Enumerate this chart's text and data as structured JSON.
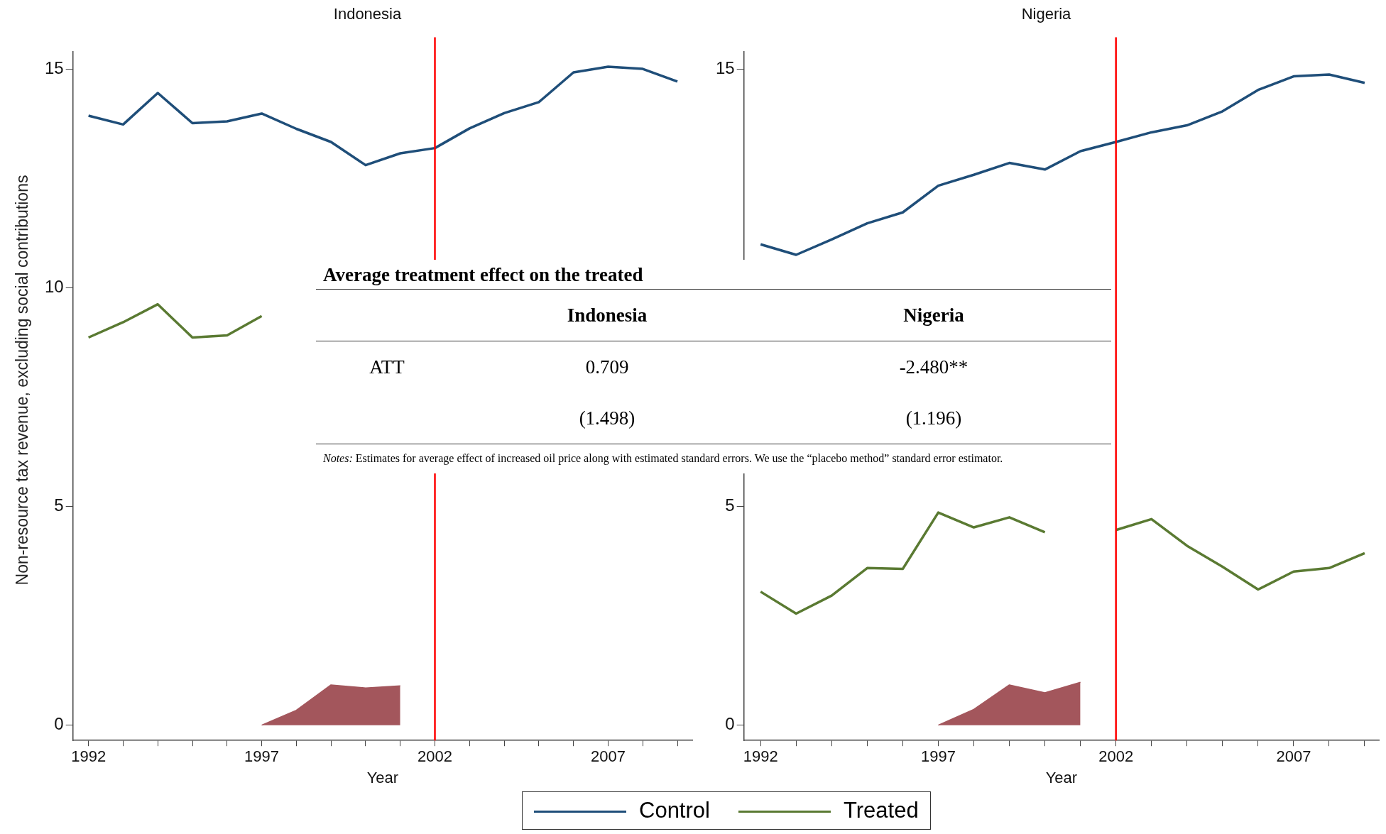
{
  "chart_data": [
    {
      "type": "line",
      "title": "Indonesia",
      "xlabel": "Year",
      "ylabel": "Non-resource tax revenue, excluding social contributions",
      "x": [
        1992,
        1993,
        1994,
        1995,
        1996,
        1997,
        1998,
        1999,
        2000,
        2001,
        2002,
        2003,
        2004,
        2005,
        2006,
        2007,
        2008,
        2009
      ],
      "series": [
        {
          "name": "Control",
          "color": "#1f4e79",
          "values": [
            13.93,
            13.73,
            14.45,
            13.76,
            13.8,
            13.98,
            13.63,
            13.33,
            12.8,
            13.07,
            13.19,
            13.64,
            13.99,
            14.24,
            14.92,
            15.05,
            15.0,
            14.71
          ]
        },
        {
          "name": "Treated",
          "color": "#5a7a32",
          "values": [
            8.86,
            9.21,
            9.62,
            8.86,
            8.91,
            9.35,
            null,
            null,
            null,
            null,
            null,
            null,
            null,
            null,
            null,
            null,
            null,
            null
          ]
        },
        {
          "type": "area",
          "color": "#a3565c",
          "values": [
            null,
            null,
            null,
            null,
            null,
            0,
            0.34,
            0.92,
            0.85,
            0.9,
            null,
            null,
            null,
            null,
            null,
            null,
            null,
            null
          ]
        }
      ],
      "xlim": [
        1991.55,
        2009.43
      ],
      "xticks": [
        1992,
        {
          "value": 1993,
          "label": null
        },
        {
          "value": 1994,
          "label": null
        },
        {
          "value": 1995,
          "label": null
        },
        {
          "value": 1996,
          "label": null
        },
        1997,
        {
          "value": 1998,
          "label": null
        },
        {
          "value": 1999,
          "label": null
        },
        {
          "value": 2000,
          "label": null
        },
        {
          "value": 2001,
          "label": null
        },
        2002,
        {
          "value": 2003,
          "label": null
        },
        {
          "value": 2004,
          "label": null
        },
        {
          "value": 2005,
          "label": null
        },
        {
          "value": 2006,
          "label": null
        },
        2007,
        {
          "value": 2008,
          "label": null
        },
        {
          "value": 2009,
          "label": null
        }
      ],
      "ylim": [
        -0.35,
        15.4
      ],
      "yticks": [
        0,
        5,
        10,
        15
      ],
      "ref_lines": [
        {
          "axis": "x",
          "value": 2002,
          "color": "#ff0000"
        }
      ],
      "marker": "none",
      "legend": "bottom"
    },
    {
      "type": "line",
      "title": "Nigeria",
      "xlabel": "Year",
      "x": [
        1992,
        1993,
        1994,
        1995,
        1996,
        1997,
        1998,
        1999,
        2000,
        2001,
        2002,
        2003,
        2004,
        2005,
        2006,
        2007,
        2008,
        2009
      ],
      "series": [
        {
          "color": "#1f4e79",
          "values": [
            10.99,
            10.75,
            11.1,
            11.47,
            11.72,
            12.33,
            12.58,
            12.85,
            12.7,
            13.12,
            13.33,
            13.55,
            13.71,
            14.03,
            14.52,
            14.83,
            14.87,
            14.68
          ]
        },
        {
          "color": "#5a7a32",
          "values": [
            3.05,
            2.55,
            2.96,
            3.59,
            3.57,
            4.86,
            4.52,
            4.75,
            4.41,
            null,
            4.46,
            4.71,
            4.1,
            3.62,
            3.1,
            3.51,
            3.59,
            3.93
          ]
        },
        {
          "type": "area",
          "color": "#a3565c",
          "values": [
            null,
            null,
            null,
            null,
            null,
            0,
            0.36,
            0.92,
            0.74,
            0.98,
            null,
            null,
            null,
            null,
            null,
            null,
            null,
            null
          ]
        }
      ],
      "xlim": [
        1991.53,
        2009.4
      ],
      "xticks": [
        1992,
        {
          "value": 1993,
          "label": null
        },
        {
          "value": 1994,
          "label": null
        },
        {
          "value": 1995,
          "label": null
        },
        {
          "value": 1996,
          "label": null
        },
        1997,
        {
          "value": 1998,
          "label": null
        },
        {
          "value": 1999,
          "label": null
        },
        {
          "value": 2000,
          "label": null
        },
        {
          "value": 2001,
          "label": null
        },
        2002,
        {
          "value": 2003,
          "label": null
        },
        {
          "value": 2004,
          "label": null
        },
        {
          "value": 2005,
          "label": null
        },
        {
          "value": 2006,
          "label": null
        },
        2007,
        {
          "value": 2008,
          "label": null
        },
        {
          "value": 2009,
          "label": null
        }
      ],
      "ylim": [
        -0.35,
        15.4
      ],
      "yticks": [
        0,
        5,
        15
      ],
      "ref_lines": [
        {
          "axis": "x",
          "value": 2002,
          "color": "#ff0000"
        }
      ],
      "marker": "none"
    },
    {
      "type": "other",
      "title": "Average treatment effect on the treated",
      "annotations": [
        "Indonesia",
        "Nigeria",
        "ATT",
        "0.709",
        "-2.480**",
        "(1.498)",
        "(1.196)",
        "Notes: Estimates for average effect of increased oil price along with estimated standard errors. We use the “placebo method” standard error estimator."
      ]
    }
  ]
}
